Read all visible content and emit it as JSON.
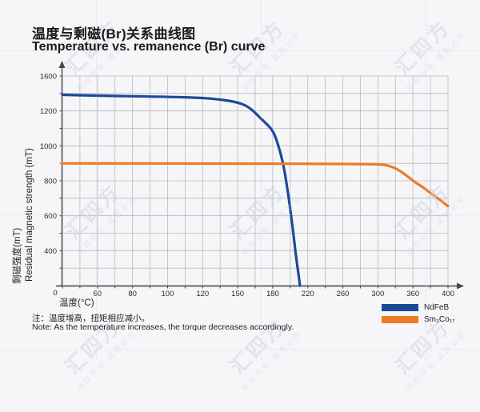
{
  "titles": {
    "zh": "温度与剩磁(Br)关系曲线图",
    "en": "Temperature vs. remanence (Br) curve"
  },
  "axis": {
    "x_title": "温度(°C)",
    "y_title_zh": "剩磁强度(mT)",
    "y_title_en": "Residual magnetic strength (mT)",
    "origin_label": "0"
  },
  "chart_data": {
    "type": "line",
    "title": "Temperature vs. remanence (Br) curve",
    "xlabel": "温度(°C)",
    "ylabel": "Residual magnetic strength (mT)",
    "x_ticks": [
      0,
      60,
      80,
      100,
      120,
      150,
      180,
      220,
      260,
      300,
      360,
      400
    ],
    "y_ticks": [
      0,
      400,
      600,
      800,
      1000,
      1200,
      1600
    ],
    "axis_note": "tick values are equally spaced (non-linear scale); one minor gridline between each pair of labeled ticks; grid on",
    "legend_position": "bottom-right",
    "series": [
      {
        "name": "NdFeB",
        "color": "#1b4a9b",
        "points": [
          [
            0,
            1385
          ],
          [
            60,
            1375
          ],
          [
            100,
            1362
          ],
          [
            120,
            1350
          ],
          [
            135,
            1332
          ],
          [
            150,
            1300
          ],
          [
            160,
            1245
          ],
          [
            170,
            1155
          ],
          [
            180,
            1093
          ],
          [
            186,
            1010
          ],
          [
            192,
            900
          ],
          [
            196,
            780
          ],
          [
            200,
            640
          ],
          [
            204,
            480
          ],
          [
            207,
            300
          ],
          [
            210,
            90
          ],
          [
            211,
            0
          ]
        ]
      },
      {
        "name": "Sm2Co17",
        "color": "#ec7b26",
        "points": [
          [
            0,
            900
          ],
          [
            60,
            900
          ],
          [
            120,
            899
          ],
          [
            180,
            898
          ],
          [
            240,
            897
          ],
          [
            300,
            895
          ],
          [
            310,
            892
          ],
          [
            320,
            885
          ],
          [
            330,
            872
          ],
          [
            340,
            852
          ],
          [
            350,
            828
          ],
          [
            360,
            800
          ],
          [
            370,
            768
          ],
          [
            380,
            730
          ],
          [
            390,
            694
          ],
          [
            400,
            655
          ]
        ]
      }
    ]
  },
  "legend": {
    "items": [
      {
        "label": "NdFeB",
        "color": "#1b4a9b"
      },
      {
        "label": "Sm₂Co₁₇",
        "color": "#ec7b26"
      }
    ]
  },
  "notes": {
    "zh": "注：温度增高，扭矩相应减小。",
    "en": "Note: As the temperature increases, the torque decreases accordingly."
  },
  "watermark": {
    "line1": "汇四方",
    "line2": "版权所有 盗图必究"
  }
}
